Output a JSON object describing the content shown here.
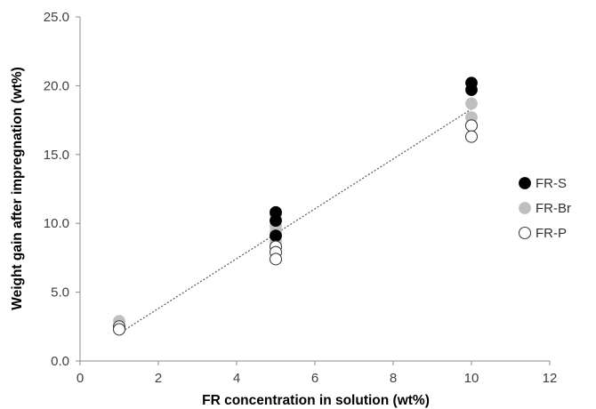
{
  "chart_data": {
    "type": "scatter",
    "title": "",
    "xlabel": "FR concentration in solution (wt%)",
    "ylabel": "Weight gain after impregnation (wt%)",
    "xlim": [
      0,
      12
    ],
    "ylim": [
      0,
      25
    ],
    "x_ticks": [
      "0",
      "2",
      "4",
      "6",
      "8",
      "10",
      "12"
    ],
    "y_ticks": [
      "0.0",
      "5.0",
      "10.0",
      "15.0",
      "20.0",
      "25.0"
    ],
    "grid": false,
    "legend_position": "right",
    "series": [
      {
        "name": "FR-S",
        "marker": "filled",
        "color": "#000000",
        "points": [
          [
            5,
            10.8
          ],
          [
            5,
            10.2
          ],
          [
            5,
            9.1
          ],
          [
            10,
            20.2
          ],
          [
            10,
            19.7
          ]
        ]
      },
      {
        "name": "FR-Br",
        "marker": "filled",
        "color": "#bfbfbf",
        "points": [
          [
            1,
            2.9
          ],
          [
            5,
            10.6
          ],
          [
            5,
            9.8
          ],
          [
            5,
            9.4
          ],
          [
            5,
            8.7
          ],
          [
            5,
            8.4
          ],
          [
            10,
            18.7
          ],
          [
            10,
            17.7
          ]
        ]
      },
      {
        "name": "FR-P",
        "marker": "open",
        "color": "#404040",
        "points": [
          [
            1,
            2.5
          ],
          [
            1,
            2.3
          ],
          [
            5,
            8.3
          ],
          [
            5,
            7.9
          ],
          [
            5,
            7.4
          ],
          [
            10,
            17.1
          ],
          [
            10,
            16.3
          ]
        ]
      }
    ],
    "trendline": {
      "style": "dotted",
      "color": "#595959",
      "points": [
        [
          1,
          2.0
        ],
        [
          10,
          18.3
        ]
      ]
    }
  }
}
